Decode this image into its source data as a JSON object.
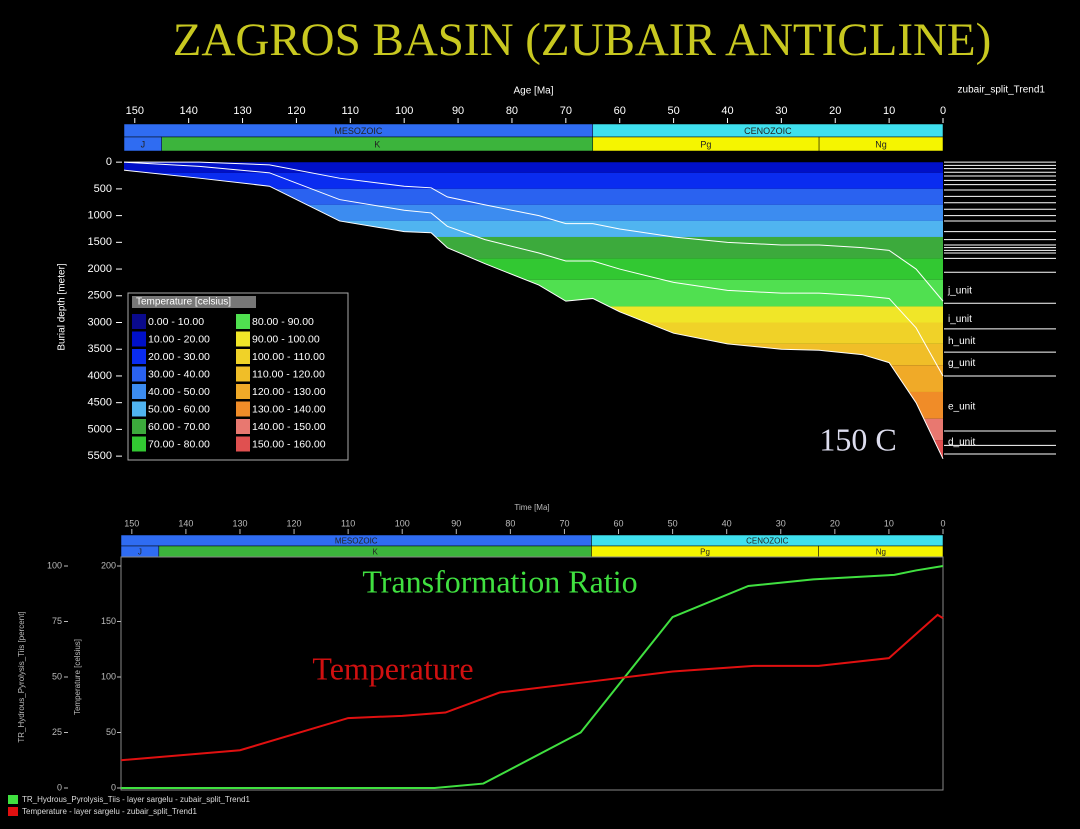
{
  "title": "ZAGROS BASIN (ZUBAIR ANTICLINE)",
  "chart_data": [
    {
      "type": "burial",
      "trend_label": "zubair_split_Trend1",
      "x_label": "Age [Ma]",
      "y_label": "Burial depth [meter]",
      "xlim": [
        152,
        0
      ],
      "xticks": [
        150,
        140,
        130,
        120,
        110,
        100,
        90,
        80,
        70,
        60,
        50,
        40,
        30,
        20,
        10,
        0
      ],
      "ylim": [
        -190,
        5610
      ],
      "yticks": [
        0,
        500,
        1000,
        1500,
        2000,
        2500,
        3000,
        3500,
        4000,
        4500,
        5000,
        5500
      ],
      "eras": [
        {
          "label": "MESOZOIC",
          "start": 152,
          "end": 65,
          "color": "#2f6cf2"
        },
        {
          "label": "CENOZOIC",
          "start": 65,
          "end": 0,
          "color": "#3fe0ee"
        }
      ],
      "periods": [
        {
          "label": "J",
          "start": 152,
          "end": 145,
          "color": "#2f6cf2"
        },
        {
          "label": "K",
          "start": 145,
          "end": 65,
          "color": "#3cb43c"
        },
        {
          "label": "Pg",
          "start": 65,
          "end": 23,
          "color": "#f5f500"
        },
        {
          "label": "Ng",
          "start": 23,
          "end": 0,
          "color": "#f5f500"
        }
      ],
      "x": [
        152,
        138,
        125,
        112,
        100,
        95,
        92,
        85,
        75,
        70,
        65,
        60,
        50,
        40,
        30,
        23,
        15,
        10,
        5,
        0
      ],
      "series": [
        {
          "color": "#ffffff",
          "values": [
            0,
            0,
            50,
            300,
            450,
            480,
            650,
            800,
            1000,
            1150,
            1150,
            1250,
            1400,
            1500,
            1550,
            1550,
            1600,
            1650,
            2000,
            2600
          ]
        },
        {
          "color": "#ffffff",
          "values": [
            0,
            80,
            200,
            700,
            900,
            950,
            1200,
            1450,
            1700,
            1850,
            1850,
            2000,
            2250,
            2400,
            2450,
            2450,
            2500,
            2550,
            3100,
            4000
          ]
        },
        {
          "color": "#ffffff",
          "values": [
            150,
            300,
            450,
            1100,
            1300,
            1320,
            1600,
            1900,
            2300,
            2600,
            2550,
            2800,
            3200,
            3400,
            3500,
            3520,
            3600,
            3750,
            4500,
            5550
          ]
        }
      ],
      "legend_title": "Temperature [celsius]",
      "temperature_classes": [
        {
          "label": "0.00 - 10.00",
          "color": "#0a0a8c",
          "depth_range": null
        },
        {
          "label": "10.00 - 20.00",
          "color": "#0010c8",
          "depth_range": [
            0,
            200
          ]
        },
        {
          "label": "20.00 - 30.00",
          "color": "#0a2cf0",
          "depth_range": [
            200,
            500
          ]
        },
        {
          "label": "30.00 - 40.00",
          "color": "#2a62f0",
          "depth_range": [
            500,
            800
          ]
        },
        {
          "label": "40.00 - 50.00",
          "color": "#3c8cf0",
          "depth_range": [
            800,
            1100
          ]
        },
        {
          "label": "50.00 - 60.00",
          "color": "#50b4f0",
          "depth_range": [
            1100,
            1400
          ]
        },
        {
          "label": "60.00 - 70.00",
          "color": "#3caa3c",
          "depth_range": [
            1400,
            1800
          ]
        },
        {
          "label": "70.00 - 80.00",
          "color": "#32c832",
          "depth_range": [
            1800,
            2200
          ]
        },
        {
          "label": "80.00 - 90.00",
          "color": "#50e050",
          "depth_range": [
            2200,
            2700
          ]
        },
        {
          "label": "90.00 - 100.00",
          "color": "#f0e628",
          "depth_range": [
            2700,
            3000
          ]
        },
        {
          "label": "100.00 - 110.00",
          "color": "#f0d228",
          "depth_range": [
            3000,
            3400
          ]
        },
        {
          "label": "110.00 - 120.00",
          "color": "#f0be28",
          "depth_range": [
            3400,
            3800
          ]
        },
        {
          "label": "120.00 - 130.00",
          "color": "#f0aa28",
          "depth_range": [
            3800,
            4300
          ]
        },
        {
          "label": "130.00 - 140.00",
          "color": "#f08c28",
          "depth_range": [
            4300,
            4800
          ]
        },
        {
          "label": "140.00 - 150.00",
          "color": "#e87870",
          "depth_range": [
            4800,
            5200
          ]
        },
        {
          "label": "150.00 - 160.00",
          "color": "#e05050",
          "depth_range": [
            5200,
            5600
          ]
        }
      ],
      "unit_lines": [
        0,
        60,
        120,
        190,
        260,
        340,
        420,
        520,
        640,
        760,
        880,
        1000,
        1100,
        1300,
        1450,
        1550,
        1600,
        1650,
        1700,
        1800,
        2060,
        2640,
        3120,
        3555,
        4000,
        5030,
        5300,
        5460
      ],
      "units": [
        {
          "label": "j_unit",
          "depth": 2410
        },
        {
          "label": "i_unit",
          "depth": 2940
        },
        {
          "label": "h_unit",
          "depth": 3350
        },
        {
          "label": "g_unit",
          "depth": 3760
        },
        {
          "label": "e_unit",
          "depth": 4580
        },
        {
          "label": "d_unit",
          "depth": 5240
        }
      ],
      "annotation": "150 C"
    },
    {
      "type": "line",
      "x_label": "Time [Ma]",
      "y_label": "TR_Hydrous_Pyrolysis_Tiis [percent]",
      "y2_label": "Temperature [celsius]",
      "xlim": [
        152,
        0
      ],
      "xticks": [
        150,
        140,
        130,
        120,
        110,
        100,
        90,
        80,
        70,
        60,
        50,
        40,
        30,
        20,
        10,
        0
      ],
      "ylim": [
        0,
        100
      ],
      "yticks": [
        0,
        25,
        50,
        75,
        100
      ],
      "y2lim": [
        0,
        200
      ],
      "y2ticks": [
        0,
        50,
        100,
        150,
        200
      ],
      "eras": [
        {
          "label": "MESOZOIC",
          "start": 152,
          "end": 65,
          "color": "#2f6cf2"
        },
        {
          "label": "CENOZOIC",
          "start": 65,
          "end": 0,
          "color": "#3fe0ee"
        }
      ],
      "periods": [
        {
          "label": "J",
          "start": 152,
          "end": 145,
          "color": "#2f6cf2"
        },
        {
          "label": "K",
          "start": 145,
          "end": 65,
          "color": "#3cb43c"
        },
        {
          "label": "Pg",
          "start": 65,
          "end": 23,
          "color": "#f5f500"
        },
        {
          "label": "Ng",
          "start": 23,
          "end": 0,
          "color": "#f5f500"
        }
      ],
      "series": [
        {
          "name": "TR_Hydrous_Pyrolysis_Tiis - layer sargelu - zubair_split_Trend1",
          "color": "#40e040",
          "x": [
            152,
            120,
            94,
            85,
            67,
            50,
            36,
            24,
            9,
            5,
            0
          ],
          "values": [
            0,
            0,
            0,
            2,
            25,
            77,
            91,
            94,
            96,
            98,
            100
          ]
        },
        {
          "name": "Temperature - layer sargelu - zubair_split_Trend1",
          "color": "#e01010",
          "axis": "y2",
          "x": [
            152,
            130,
            110,
            100,
            92,
            82,
            65,
            50,
            35,
            23,
            10,
            1,
            0
          ],
          "values": [
            25,
            34,
            63,
            65,
            68,
            86,
            96,
            105,
            110,
            110,
            117,
            156,
            153
          ]
        }
      ],
      "annotations": [
        "Transformation Ratio",
        "Temperature"
      ]
    }
  ]
}
